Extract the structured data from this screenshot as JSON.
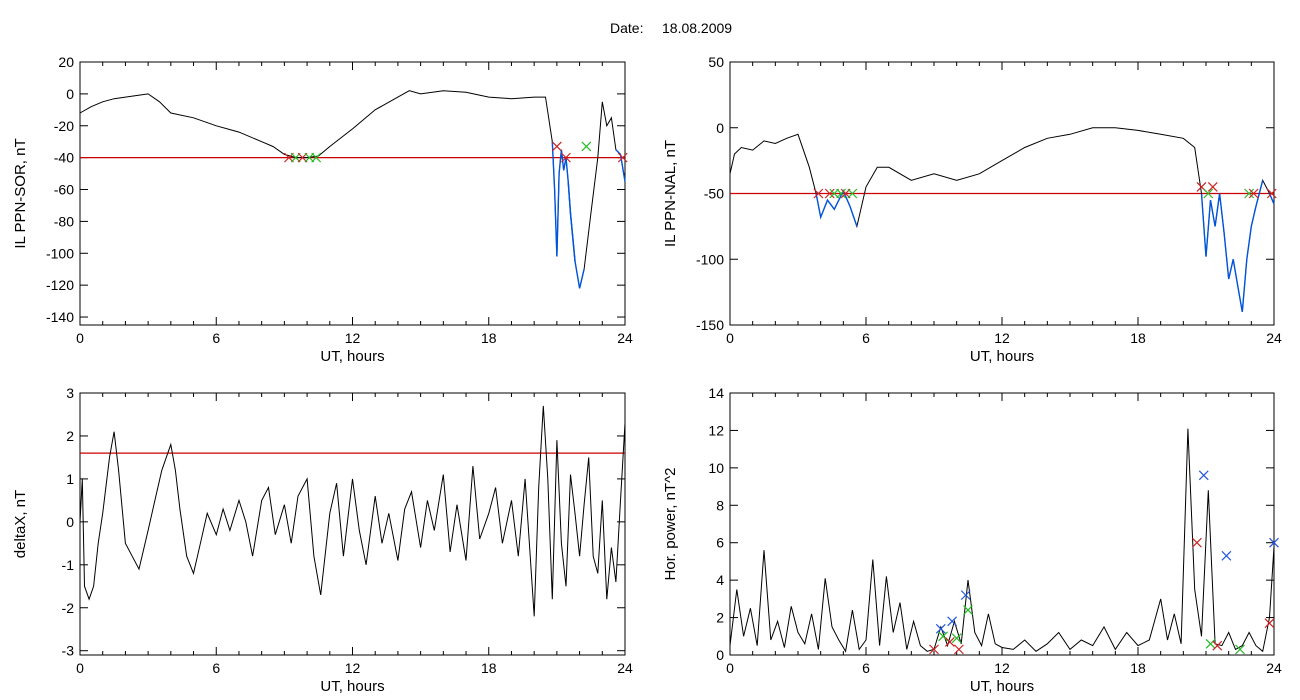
{
  "header": {
    "date_label": "Date:",
    "date_value": "18.08.2009"
  },
  "colors": {
    "trace": "#000000",
    "threshold": "#cc0000",
    "highlight": "#0055dd",
    "marker_red": "#cc2222",
    "marker_green": "#22bb22",
    "marker_blue": "#2255dd"
  },
  "chart_data": [
    {
      "id": "ppn-sor",
      "type": "line",
      "title": "",
      "xlabel": "UT, hours",
      "ylabel": "IL PPN-SOR, nT",
      "xlim": [
        0,
        24
      ],
      "ylim": [
        -145,
        20
      ],
      "xticks": [
        0,
        6,
        12,
        18,
        24
      ],
      "yticks": [
        -140,
        -120,
        -100,
        -80,
        -60,
        -40,
        -20,
        0,
        20
      ],
      "threshold": -40,
      "x": [
        0,
        0.5,
        1,
        1.5,
        2,
        2.5,
        3,
        3.5,
        4,
        5,
        6,
        7,
        8,
        8.5,
        9,
        9.5,
        10,
        10.5,
        11,
        12,
        13,
        14,
        14.5,
        15,
        16,
        17,
        18,
        19,
        20,
        20.5,
        20.8,
        20.9,
        21,
        21.1,
        21.2,
        21.3,
        21.4,
        21.5,
        21.6,
        21.8,
        22,
        22.2,
        22.5,
        22.8,
        23,
        23.2,
        23.4,
        23.6,
        23.8,
        24
      ],
      "y": [
        -12,
        -8,
        -5,
        -3,
        -2,
        -1,
        0,
        -5,
        -12,
        -15,
        -20,
        -24,
        -30,
        -33,
        -38,
        -40,
        -40,
        -39,
        -33,
        -22,
        -10,
        -2,
        2,
        0,
        2,
        1,
        -2,
        -3,
        -2,
        -2,
        -30,
        -60,
        -102,
        -50,
        -35,
        -48,
        -40,
        -55,
        -75,
        -105,
        -122,
        -110,
        -75,
        -40,
        -5,
        -20,
        -15,
        -35,
        -38,
        -55
      ],
      "highlight_segments": [
        [
          20.8,
          21.9
        ],
        [
          21.5,
          22.3
        ],
        [
          23.6,
          24
        ]
      ],
      "markers": [
        {
          "x": 9.2,
          "y": -40,
          "color": "red"
        },
        {
          "x": 9.5,
          "y": -40,
          "color": "green"
        },
        {
          "x": 9.8,
          "y": -40,
          "color": "red"
        },
        {
          "x": 10.1,
          "y": -40,
          "color": "green"
        },
        {
          "x": 10.4,
          "y": -40,
          "color": "green"
        },
        {
          "x": 21.0,
          "y": -33,
          "color": "red"
        },
        {
          "x": 21.4,
          "y": -40,
          "color": "red"
        },
        {
          "x": 22.3,
          "y": -33,
          "color": "green"
        },
        {
          "x": 23.9,
          "y": -40,
          "color": "red"
        }
      ]
    },
    {
      "id": "ppn-nal",
      "type": "line",
      "title": "",
      "xlabel": "UT, hours",
      "ylabel": "IL PPN-NAL, nT",
      "xlim": [
        0,
        24
      ],
      "ylim": [
        -150,
        50
      ],
      "xticks": [
        0,
        6,
        12,
        18,
        24
      ],
      "yticks": [
        -150,
        -100,
        -50,
        0,
        50
      ],
      "threshold": -50,
      "x": [
        0,
        0.2,
        0.5,
        1,
        1.5,
        2,
        2.5,
        3,
        3.5,
        3.8,
        4,
        4.3,
        4.6,
        5,
        5.3,
        5.6,
        6,
        6.5,
        7,
        8,
        9,
        10,
        11,
        12,
        13,
        14,
        15,
        16,
        17,
        18,
        19,
        20,
        20.5,
        20.8,
        21,
        21.2,
        21.4,
        21.6,
        21.8,
        22,
        22.2,
        22.4,
        22.6,
        22.8,
        23,
        23.2,
        23.5,
        23.8,
        24
      ],
      "y": [
        -35,
        -20,
        -15,
        -17,
        -10,
        -12,
        -8,
        -5,
        -30,
        -50,
        -68,
        -55,
        -62,
        -48,
        -60,
        -75,
        -45,
        -30,
        -30,
        -40,
        -35,
        -40,
        -35,
        -25,
        -15,
        -8,
        -5,
        0,
        0,
        -2,
        -5,
        -8,
        -15,
        -50,
        -98,
        -55,
        -75,
        -50,
        -80,
        -115,
        -100,
        -120,
        -140,
        -100,
        -75,
        -60,
        -40,
        -50,
        -58
      ],
      "highlight_segments": [
        [
          3.7,
          5.7
        ],
        [
          20.8,
          23.5
        ],
        [
          23.8,
          24
        ]
      ],
      "markers": [
        {
          "x": 3.9,
          "y": -50,
          "color": "red"
        },
        {
          "x": 4.4,
          "y": -50,
          "color": "red"
        },
        {
          "x": 4.6,
          "y": -50,
          "color": "green"
        },
        {
          "x": 4.9,
          "y": -50,
          "color": "green"
        },
        {
          "x": 5.1,
          "y": -50,
          "color": "red"
        },
        {
          "x": 5.4,
          "y": -50,
          "color": "green"
        },
        {
          "x": 20.8,
          "y": -45,
          "color": "red"
        },
        {
          "x": 21.1,
          "y": -50,
          "color": "green"
        },
        {
          "x": 21.3,
          "y": -45,
          "color": "red"
        },
        {
          "x": 22.9,
          "y": -50,
          "color": "green"
        },
        {
          "x": 23.1,
          "y": -50,
          "color": "red"
        },
        {
          "x": 23.9,
          "y": -50,
          "color": "red"
        }
      ]
    },
    {
      "id": "deltax",
      "type": "line",
      "title": "",
      "xlabel": "UT, hours",
      "ylabel": "deltaX, nT",
      "xlim": [
        0,
        24
      ],
      "ylim": [
        -3.1,
        3
      ],
      "xticks": [
        0,
        6,
        12,
        18,
        24
      ],
      "yticks": [
        -3,
        -2,
        -1,
        0,
        1,
        2,
        3
      ],
      "threshold": 1.6,
      "x": [
        0,
        0.1,
        0.2,
        0.4,
        0.6,
        0.8,
        1,
        1.3,
        1.5,
        1.7,
        2,
        2.3,
        2.6,
        3,
        3.3,
        3.6,
        4,
        4.2,
        4.4,
        4.7,
        5,
        5.3,
        5.6,
        6,
        6.3,
        6.6,
        7,
        7.3,
        7.6,
        8,
        8.3,
        8.6,
        9,
        9.3,
        9.6,
        10,
        10.3,
        10.6,
        11,
        11.3,
        11.6,
        12,
        12.3,
        12.6,
        13,
        13.3,
        13.6,
        14,
        14.3,
        14.6,
        15,
        15.3,
        15.6,
        16,
        16.3,
        16.6,
        17,
        17.3,
        17.6,
        18,
        18.3,
        18.6,
        19,
        19.3,
        19.6,
        20,
        20.2,
        20.4,
        20.6,
        20.8,
        21,
        21.2,
        21.4,
        21.6,
        21.8,
        22,
        22.2,
        22.4,
        22.6,
        22.8,
        23,
        23.2,
        23.4,
        23.6,
        23.8,
        24
      ],
      "y": [
        0,
        1,
        -1.5,
        -1.8,
        -1.5,
        -0.5,
        0.2,
        1.5,
        2.1,
        1.2,
        -0.5,
        -0.8,
        -1.1,
        -0.2,
        0.5,
        1.2,
        1.8,
        1.2,
        0.3,
        -0.8,
        -1.2,
        -0.5,
        0.2,
        -0.3,
        0.3,
        -0.2,
        0.5,
        0,
        -0.8,
        0.5,
        0.8,
        -0.3,
        0.4,
        -0.5,
        0.6,
        1.0,
        -0.8,
        -1.7,
        0.2,
        0.9,
        -0.8,
        1.0,
        -0.2,
        -1.0,
        0.6,
        -0.5,
        0.2,
        -0.9,
        0.3,
        0.7,
        -0.6,
        0.5,
        -0.2,
        1.1,
        -0.7,
        0.4,
        -0.9,
        1.3,
        -0.4,
        0.2,
        0.8,
        -0.5,
        0.5,
        -0.8,
        1.0,
        -2.2,
        0.8,
        2.7,
        1.0,
        -1.8,
        1.9,
        -0.5,
        -1.5,
        1.1,
        0.2,
        -0.8,
        0.4,
        1.5,
        -0.8,
        -1.2,
        0.5,
        -1.8,
        -0.6,
        -1.4,
        0.5,
        2.3
      ],
      "highlight_segments": [],
      "markers": []
    },
    {
      "id": "hor-power",
      "type": "line",
      "title": "",
      "xlabel": "UT, hours",
      "ylabel": "Hor. power, nT^2",
      "xlim": [
        0,
        24
      ],
      "ylim": [
        0,
        14
      ],
      "xticks": [
        0,
        6,
        12,
        18,
        24
      ],
      "yticks": [
        0,
        2,
        4,
        6,
        8,
        10,
        12,
        14
      ],
      "threshold": null,
      "x": [
        0,
        0.3,
        0.6,
        0.9,
        1.2,
        1.5,
        1.8,
        2.1,
        2.4,
        2.7,
        3,
        3.3,
        3.6,
        3.9,
        4.2,
        4.5,
        4.8,
        5.1,
        5.4,
        5.7,
        6,
        6.3,
        6.6,
        6.9,
        7.2,
        7.5,
        7.8,
        8.1,
        8.4,
        8.7,
        9,
        9.3,
        9.6,
        9.9,
        10.2,
        10.5,
        10.8,
        11.1,
        11.4,
        11.7,
        12,
        12.5,
        13,
        13.5,
        14,
        14.5,
        15,
        15.5,
        16,
        16.5,
        17,
        17.5,
        18,
        18.5,
        19,
        19.3,
        19.6,
        19.9,
        20.2,
        20.5,
        20.8,
        21.1,
        21.4,
        21.7,
        22,
        22.3,
        22.6,
        22.9,
        23.2,
        23.5,
        23.8,
        24
      ],
      "y": [
        0.5,
        3.5,
        1.0,
        2.5,
        0.5,
        5.6,
        0.8,
        1.8,
        0.4,
        2.6,
        1.2,
        0.6,
        2.2,
        0.3,
        4.1,
        1.5,
        0.8,
        0.2,
        2.4,
        0.3,
        0.8,
        5.1,
        0.5,
        4.2,
        1.2,
        2.8,
        0.3,
        1.8,
        0.5,
        0.2,
        0.3,
        1.5,
        0.5,
        1.8,
        0.6,
        4.0,
        1.2,
        0.5,
        2.2,
        0.6,
        0.4,
        0.3,
        0.8,
        0.2,
        0.6,
        1.2,
        0.3,
        0.8,
        0.5,
        1.5,
        0.3,
        1.2,
        0.5,
        0.8,
        3.0,
        0.8,
        2.2,
        0.6,
        12.1,
        3.5,
        1.0,
        8.8,
        0.6,
        0.5,
        1.2,
        0.3,
        0.5,
        1.2,
        0.5,
        0.2,
        2.0,
        5.8
      ],
      "highlight_segments": [],
      "markers": [
        {
          "x": 9.0,
          "y": 0.3,
          "color": "red"
        },
        {
          "x": 9.3,
          "y": 1.4,
          "color": "blue"
        },
        {
          "x": 9.4,
          "y": 1.0,
          "color": "green"
        },
        {
          "x": 9.7,
          "y": 0.7,
          "color": "red"
        },
        {
          "x": 9.8,
          "y": 1.8,
          "color": "blue"
        },
        {
          "x": 10.0,
          "y": 0.9,
          "color": "green"
        },
        {
          "x": 10.1,
          "y": 0.3,
          "color": "red"
        },
        {
          "x": 10.4,
          "y": 3.2,
          "color": "blue"
        },
        {
          "x": 10.5,
          "y": 2.4,
          "color": "green"
        },
        {
          "x": 20.6,
          "y": 6.0,
          "color": "red"
        },
        {
          "x": 20.9,
          "y": 9.6,
          "color": "blue"
        },
        {
          "x": 21.2,
          "y": 0.6,
          "color": "green"
        },
        {
          "x": 21.5,
          "y": 0.5,
          "color": "red"
        },
        {
          "x": 21.9,
          "y": 5.3,
          "color": "blue"
        },
        {
          "x": 22.5,
          "y": 0.3,
          "color": "green"
        },
        {
          "x": 23.8,
          "y": 1.7,
          "color": "red"
        },
        {
          "x": 24.0,
          "y": 6.0,
          "color": "blue"
        }
      ]
    }
  ]
}
